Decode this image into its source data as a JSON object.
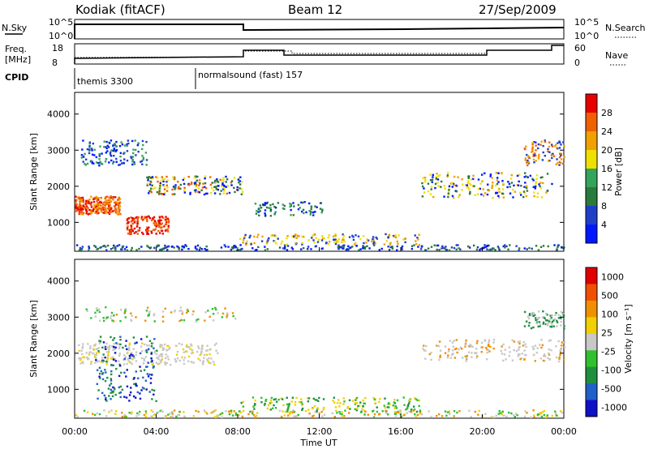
{
  "header": {
    "station": "Kodiak (fitACF)",
    "beam": "Beam 12",
    "date": "27/Sep/2009"
  },
  "summary": {
    "nsky_label": "N.Sky",
    "nsearch_label": "N.Search",
    "freq_label_line1": "Freq.",
    "freq_label_line2": "[MHz]",
    "nave_label": "Nave",
    "cpid_label": "CPID",
    "nsky_ticks": [
      "10^5",
      "10^0"
    ],
    "nsearch_ticks": [
      "10^5",
      "10^0"
    ],
    "freq_ticks": [
      "18",
      "8"
    ],
    "nave_ticks": [
      "60",
      "0"
    ],
    "cpid_segments": [
      {
        "start": "00:00",
        "label": "themis 3300"
      },
      {
        "start": "06:00",
        "label": "normalsound (fast) 157"
      }
    ]
  },
  "colors": {
    "power_scale": [
      "#0018ff",
      "#1f3fc8",
      "#2a7a3a",
      "#35a35a",
      "#f0e000",
      "#f0a000",
      "#f06000",
      "#e80000"
    ],
    "velocity_scale": [
      "#1010c8",
      "#2060c8",
      "#1f8f3f",
      "#30c030",
      "#c8c8c8",
      "#f0d000",
      "#f09000",
      "#f05000",
      "#e00000"
    ]
  },
  "chart_data": [
    {
      "type": "heatmap",
      "panel": "power",
      "ylabel": "Slant Range [km]",
      "xlabel": "",
      "xlim": [
        "00:00",
        "24:00"
      ],
      "ylim": [
        200,
        4600
      ],
      "yticks": [
        "1000",
        "2000",
        "3000",
        "4000"
      ],
      "colorbar_label": "Power [dB]",
      "colorbar_ticks": [
        "4",
        "8",
        "12",
        "16",
        "20",
        "24",
        "28"
      ],
      "grid": false
    },
    {
      "type": "heatmap",
      "panel": "velocity",
      "ylabel": "Slant Range [km]",
      "xlabel": "Time UT",
      "xlim": [
        "00:00",
        "24:00"
      ],
      "ylim": [
        200,
        4600
      ],
      "xticks": [
        "00:00",
        "04:00",
        "08:00",
        "12:00",
        "16:00",
        "20:00",
        "00:00"
      ],
      "yticks": [
        "1000",
        "2000",
        "3000",
        "4000"
      ],
      "colorbar_label": "Velocity [m s⁻¹]",
      "colorbar_ticks": [
        "1000",
        "500",
        "100",
        "25",
        "-25",
        "-100",
        "-500",
        "-1000"
      ],
      "grid": false
    }
  ]
}
